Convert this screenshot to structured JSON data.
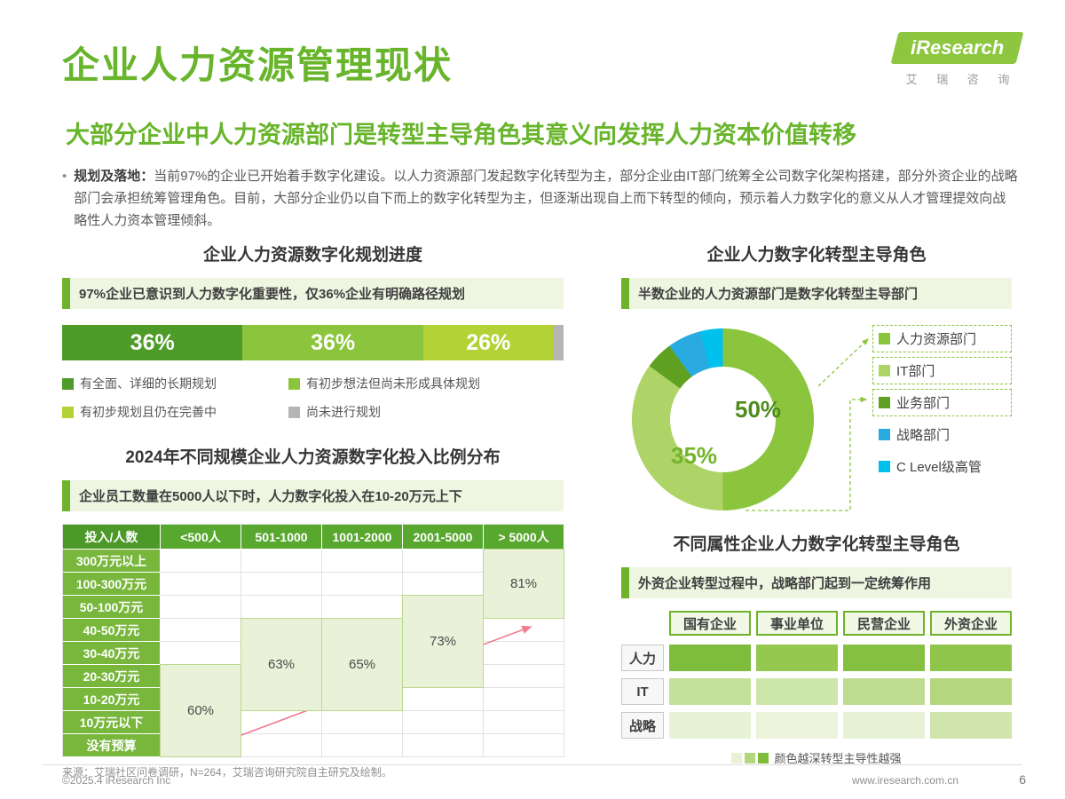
{
  "page": {
    "title": "企业人力资源管理现状",
    "subtitle": "大部分企业中人力资源部门是转型主导角色其意义向发挥人力资本价值转移",
    "bullet_label": "规划及落地：",
    "bullet_text": "当前97%的企业已开始着手数字化建设。以人力资源部门发起数字化转型为主，部分企业由IT部门统筹全公司数字化架构搭建，部分外资企业的战略部门会承担统筹管理角色。目前，大部分企业仍以自下而上的数字化转型为主，但逐渐出现自上而下转型的倾向，预示着人力数字化的意义从人才管理提效向战略性人力资本管理倾斜。",
    "source": "来源：艾瑞社区问卷调研，N=264，艾瑞咨询研究院自主研究及绘制。",
    "footer_left": "©2025.4 iResearch Inc",
    "footer_url": "www.iresearch.com.cn",
    "page_number": "6"
  },
  "logo": {
    "brand": "iResearch",
    "brand_cn": "艾 瑞 咨 询"
  },
  "left": {
    "section1_title": "企业人力资源数字化规划进度",
    "callout1": "97%企业已意识到人力数字化重要性，仅36%企业有明确路径规划",
    "section2_title": "2024年不同规模企业人力资源数字化投入比例分布",
    "callout2": "企业员工数量在5000人以下时，人力数字化投入在10-20万元上下"
  },
  "right": {
    "section1_title": "企业人力数字化转型主导角色",
    "callout1": "半数企业的人力资源部门是数字化转型主导部门",
    "section2_title": "不同属性企业人力数字化转型主导角色",
    "callout2": "外资企业转型过程中，战略部门起到一定统筹作用"
  },
  "chart_data": [
    {
      "id": "planning_progress",
      "type": "bar",
      "variant": "stacked-horizontal",
      "title": "企业人力资源数字化规划进度",
      "segments": [
        {
          "label": "有全面、详细的长期规划",
          "value": 36,
          "display": "36%",
          "color": "#4e9b29"
        },
        {
          "label": "有初步想法但尚未形成具体规划",
          "value": 36,
          "display": "36%",
          "color": "#8bc53e"
        },
        {
          "label": "有初步规划且仍在完善中",
          "value": 26,
          "display": "26%",
          "color": "#b2d235"
        },
        {
          "label": "尚未进行规划",
          "value": 2,
          "display": "",
          "color": "#b5b5b5"
        }
      ],
      "xlim": [
        0,
        100
      ]
    },
    {
      "id": "investment_by_company_size",
      "type": "table",
      "title": "2024年不同规模企业人力资源数字化投入比例分布",
      "corner": "投入/人数",
      "columns": [
        "<500人",
        "501-1000",
        "1001-2000",
        "2001-5000",
        "> 5000人"
      ],
      "rows": [
        "300万元以上",
        "100-300万元",
        "50-100万元",
        "40-50万元",
        "30-40万元",
        "20-30万元",
        "10-20万元",
        "10万元以下",
        "没有预算"
      ],
      "blocks": [
        {
          "column": "<500人",
          "col_index": 0,
          "row_start": 6,
          "row_end": 9,
          "label": "60%"
        },
        {
          "column": "501-1000",
          "col_index": 1,
          "row_start": 4,
          "row_end": 7,
          "label": "63%"
        },
        {
          "column": "1001-2000",
          "col_index": 2,
          "row_start": 4,
          "row_end": 7,
          "label": "65%"
        },
        {
          "column": "2001-5000",
          "col_index": 3,
          "row_start": 3,
          "row_end": 6,
          "label": "73%"
        },
        {
          "column": "> 5000人",
          "col_index": 4,
          "row_start": 1,
          "row_end": 3,
          "label": "81%"
        }
      ]
    },
    {
      "id": "transformation_lead_role",
      "type": "pie",
      "variant": "donut",
      "title": "企业人力数字化转型主导角色",
      "segments": [
        {
          "label": "人力资源部门",
          "value": 50,
          "display": "50%",
          "color": "#8bc53e",
          "boxed": true
        },
        {
          "label": "IT部门",
          "value": 35,
          "display": "35%",
          "color": "#aed468",
          "boxed": true
        },
        {
          "label": "业务部门",
          "value": 5,
          "display": "",
          "color": "#61a122",
          "boxed": true
        },
        {
          "label": "战略部门",
          "value": 6,
          "display": "",
          "color": "#29abe2",
          "boxed": false
        },
        {
          "label": "C Level级高管",
          "value": 4,
          "display": "",
          "color": "#00c1ee",
          "boxed": false
        }
      ],
      "legend_position": "right"
    },
    {
      "id": "lead_role_by_ownership",
      "type": "heatmap",
      "title": "不同属性企业人力数字化转型主导角色",
      "columns": [
        "国有企业",
        "事业单位",
        "民营企业",
        "外资企业"
      ],
      "rows": [
        "人力",
        "IT",
        "战略"
      ],
      "cell_colors": [
        [
          "#7ebc3c",
          "#94c84f",
          "#85c041",
          "#8fc54a"
        ],
        [
          "#c3df99",
          "#cde6a9",
          "#bedc90",
          "#b4d77e"
        ],
        [
          "#e7f2d5",
          "#ebf4db",
          "#e7f2d5",
          "#cfe5ab"
        ]
      ],
      "legend_note": "颜色越深转型主导性越强",
      "note_swatches": [
        "#e7f2d5",
        "#b4d77e",
        "#7ebc3c"
      ]
    }
  ]
}
